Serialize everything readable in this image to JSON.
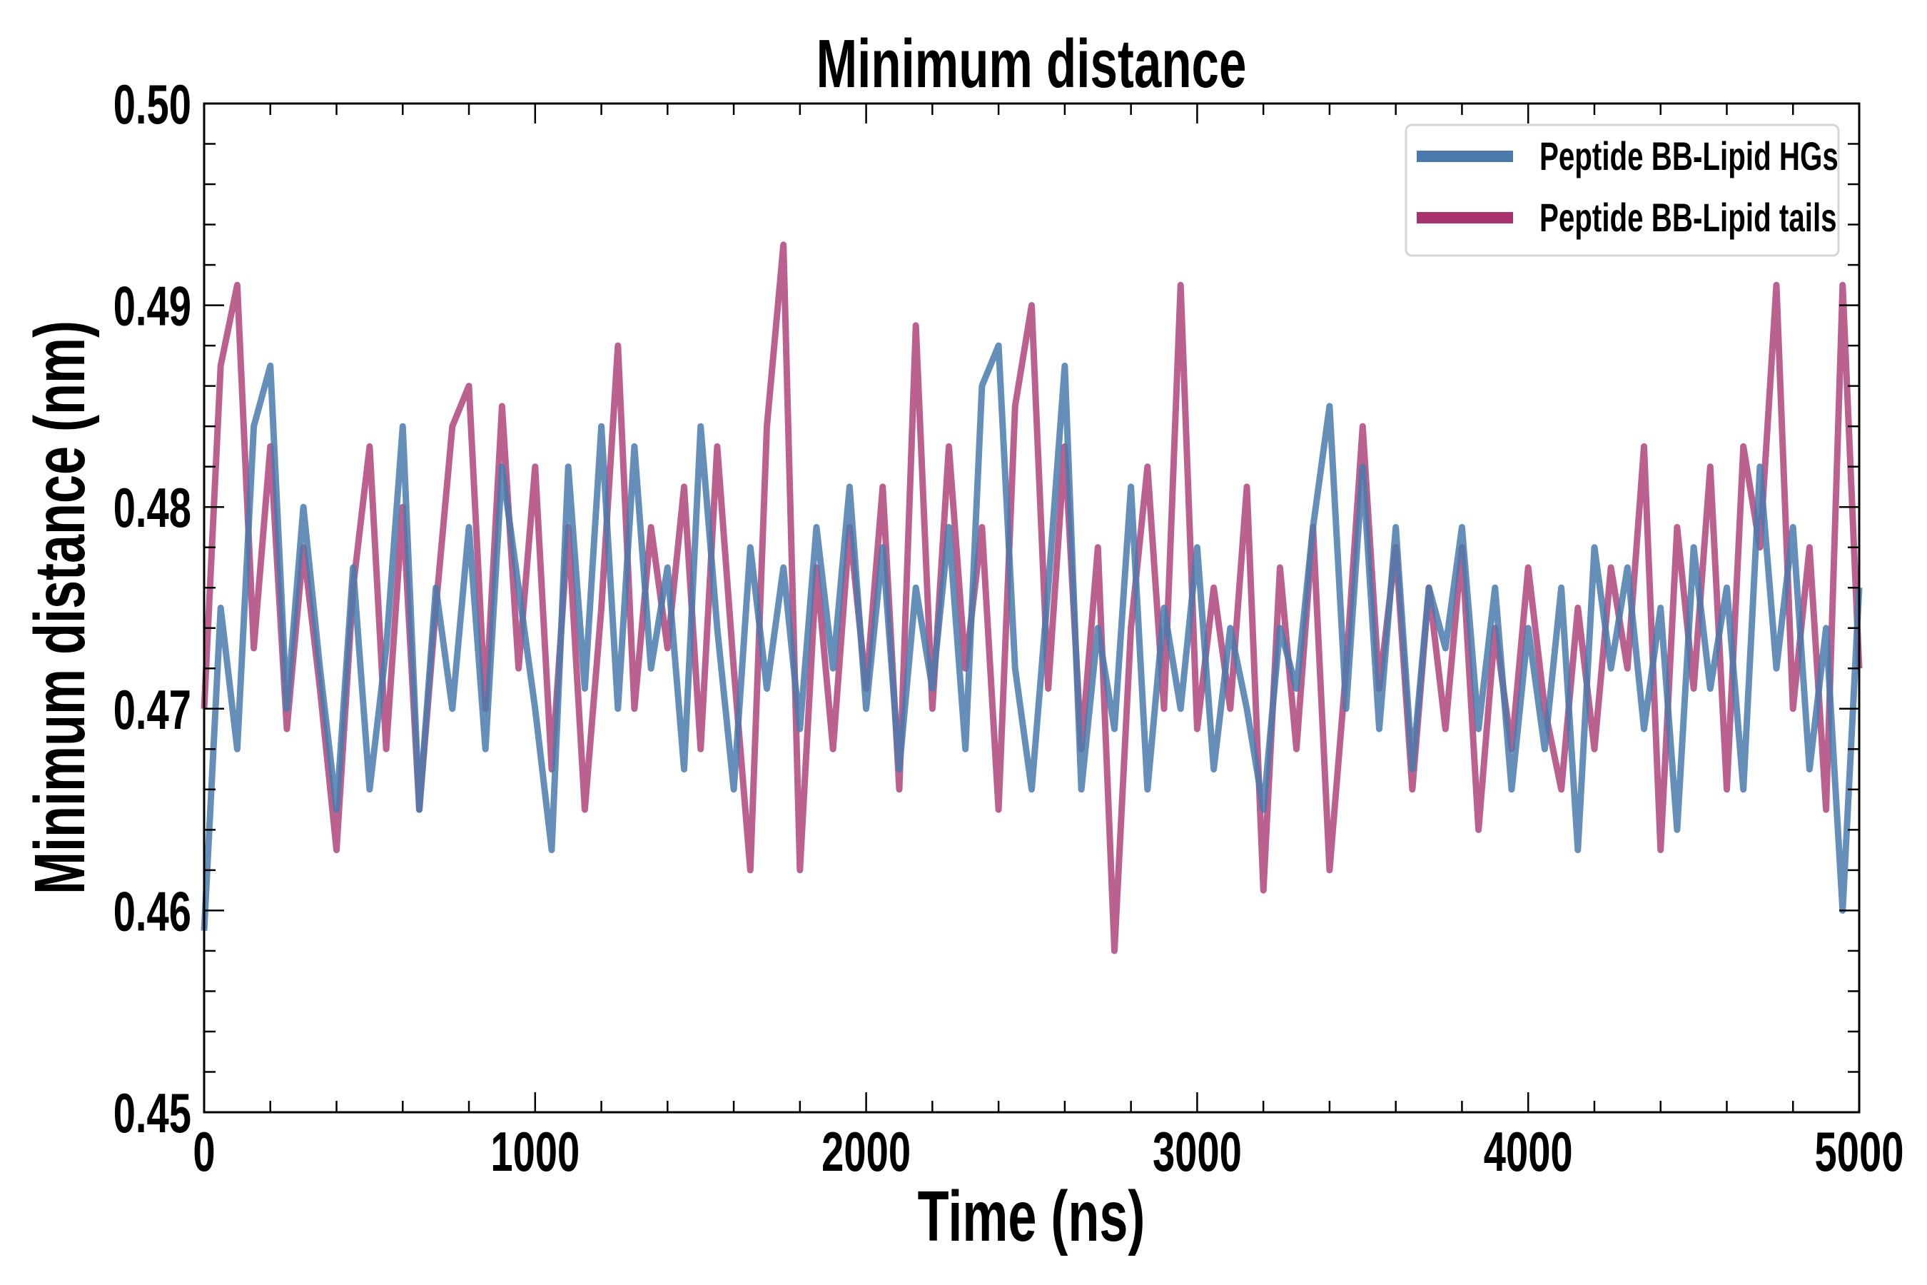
{
  "chart_data": {
    "type": "line",
    "title": "Minimum distance",
    "xlabel": "Time (ns)",
    "ylabel": "Minimum distance (nm)",
    "xlim": [
      0,
      5000
    ],
    "ylim": [
      0.45,
      0.5
    ],
    "x_start": 0,
    "x_step": 50,
    "xticks": [
      0,
      1000,
      2000,
      3000,
      4000,
      5000
    ],
    "xtick_labels": [
      "0",
      "1000",
      "2000",
      "3000",
      "4000",
      "5000"
    ],
    "x_minor_step": 200,
    "yticks": [
      0.45,
      0.46,
      0.47,
      0.48,
      0.49,
      0.5
    ],
    "ytick_labels": [
      "0.45",
      "0.46",
      "0.47",
      "0.48",
      "0.49",
      "0.50"
    ],
    "y_minor_step": 0.002,
    "grid": false,
    "legend_position": "top-right",
    "series": [
      {
        "name": "Peptide BB-Lipid HGs",
        "color": "#4a7aac",
        "values": [
          0.459,
          0.475,
          0.468,
          0.484,
          0.487,
          0.47,
          0.48,
          0.472,
          0.465,
          0.477,
          0.466,
          0.473,
          0.484,
          0.465,
          0.476,
          0.47,
          0.479,
          0.468,
          0.482,
          0.476,
          0.47,
          0.463,
          0.482,
          0.471,
          0.484,
          0.47,
          0.483,
          0.472,
          0.477,
          0.467,
          0.484,
          0.474,
          0.466,
          0.478,
          0.471,
          0.477,
          0.469,
          0.479,
          0.472,
          0.481,
          0.47,
          0.478,
          0.467,
          0.476,
          0.471,
          0.479,
          0.468,
          0.486,
          0.488,
          0.472,
          0.466,
          0.476,
          0.487,
          0.466,
          0.474,
          0.469,
          0.481,
          0.466,
          0.475,
          0.47,
          0.478,
          0.467,
          0.474,
          0.47,
          0.465,
          0.474,
          0.471,
          0.479,
          0.485,
          0.47,
          0.482,
          0.469,
          0.479,
          0.467,
          0.476,
          0.473,
          0.479,
          0.469,
          0.476,
          0.466,
          0.474,
          0.468,
          0.476,
          0.463,
          0.478,
          0.472,
          0.477,
          0.469,
          0.475,
          0.464,
          0.478,
          0.471,
          0.476,
          0.466,
          0.482,
          0.472,
          0.479,
          0.467,
          0.474,
          0.46,
          0.476
        ]
      },
      {
        "name": "Peptide BB-Lipid tails",
        "color": "#a8346f",
        "values": [
          0.47,
          0.487,
          0.491,
          0.473,
          0.483,
          0.469,
          0.478,
          0.471,
          0.463,
          0.476,
          0.483,
          0.468,
          0.48,
          0.465,
          0.475,
          0.484,
          0.486,
          0.47,
          0.485,
          0.472,
          0.482,
          0.467,
          0.479,
          0.465,
          0.475,
          0.488,
          0.47,
          0.479,
          0.473,
          0.481,
          0.468,
          0.483,
          0.472,
          0.462,
          0.484,
          0.493,
          0.462,
          0.477,
          0.468,
          0.479,
          0.471,
          0.481,
          0.466,
          0.489,
          0.47,
          0.483,
          0.472,
          0.479,
          0.465,
          0.485,
          0.49,
          0.471,
          0.483,
          0.468,
          0.478,
          0.458,
          0.474,
          0.482,
          0.47,
          0.491,
          0.469,
          0.476,
          0.47,
          0.481,
          0.461,
          0.477,
          0.468,
          0.479,
          0.462,
          0.472,
          0.484,
          0.471,
          0.478,
          0.466,
          0.476,
          0.469,
          0.478,
          0.464,
          0.474,
          0.468,
          0.477,
          0.47,
          0.466,
          0.475,
          0.468,
          0.477,
          0.472,
          0.483,
          0.463,
          0.479,
          0.471,
          0.482,
          0.466,
          0.483,
          0.478,
          0.491,
          0.47,
          0.478,
          0.465,
          0.491,
          0.472
        ]
      }
    ]
  }
}
